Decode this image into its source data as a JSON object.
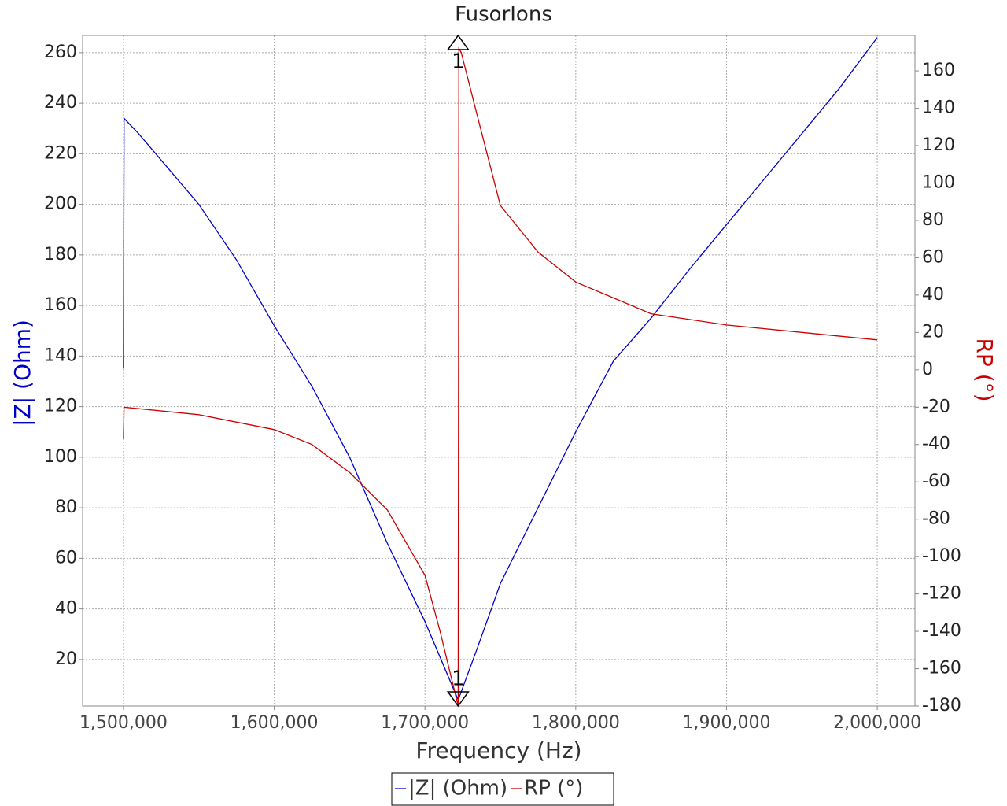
{
  "chart_data": {
    "type": "line",
    "title": "FusorIons",
    "x_label": "Frequency (Hz)",
    "y_label": "|Z| (Ohm)",
    "y2_label": "RP (°)",
    "xlim": [
      1472900,
      2025000
    ],
    "ylim": [
      1.6,
      266.8
    ],
    "y2lim": [
      -180,
      179
    ],
    "xticks": [
      {
        "value": 1500000,
        "label": "1,500,000"
      },
      {
        "value": 1600000,
        "label": "1,600,000"
      },
      {
        "value": 1700000,
        "label": "1,700,000"
      },
      {
        "value": 1800000,
        "label": "1,800,000"
      },
      {
        "value": 1900000,
        "label": "1,900,000"
      },
      {
        "value": 2000000,
        "label": "2,000,000"
      }
    ],
    "yticks": [
      20,
      40,
      60,
      80,
      100,
      120,
      140,
      160,
      180,
      200,
      220,
      240,
      260
    ],
    "y2ticks": [
      -180,
      -160,
      -140,
      -120,
      -100,
      -80,
      -60,
      -40,
      -20,
      0,
      20,
      40,
      60,
      80,
      100,
      120,
      140,
      160
    ],
    "grid": true,
    "legend": "bottom",
    "series": [
      {
        "name": "|Z| (Ohm)",
        "color": "#0000cc",
        "axis": "y",
        "x": [
          1500000,
          1500400,
          1510000,
          1550000,
          1575000,
          1600000,
          1625000,
          1650000,
          1675000,
          1700000,
          1722000,
          1735000,
          1750000,
          1775000,
          1800000,
          1825000,
          1850000,
          1875000,
          1900000,
          1925000,
          1950000,
          1975000,
          2000000
        ],
        "values": [
          135,
          234,
          228,
          200,
          178,
          152,
          128,
          100,
          66,
          35,
          4,
          25,
          50,
          80,
          110,
          138,
          155,
          174,
          192,
          210,
          228,
          246,
          266
        ]
      },
      {
        "name": "RP (°)",
        "color": "#cc0000",
        "axis": "y2",
        "x": [
          1500000,
          1500400,
          1550000,
          1600000,
          1625000,
          1650000,
          1675000,
          1700000,
          1710000,
          1722000,
          1722500,
          1724000,
          1735000,
          1750000,
          1775000,
          1800000,
          1850000,
          1900000,
          1950000,
          2000000
        ],
        "values": [
          -37,
          -20,
          -24,
          -32,
          -40,
          -55,
          -75,
          -110,
          -140,
          -180,
          172,
          170,
          135,
          88,
          63,
          47,
          30,
          24,
          20,
          16
        ]
      }
    ],
    "markers": [
      {
        "x": 1722000,
        "y": 179,
        "label": "1",
        "axis": "y2"
      },
      {
        "x": 1722000,
        "y": -180,
        "label": "1",
        "axis": "y2"
      }
    ]
  }
}
